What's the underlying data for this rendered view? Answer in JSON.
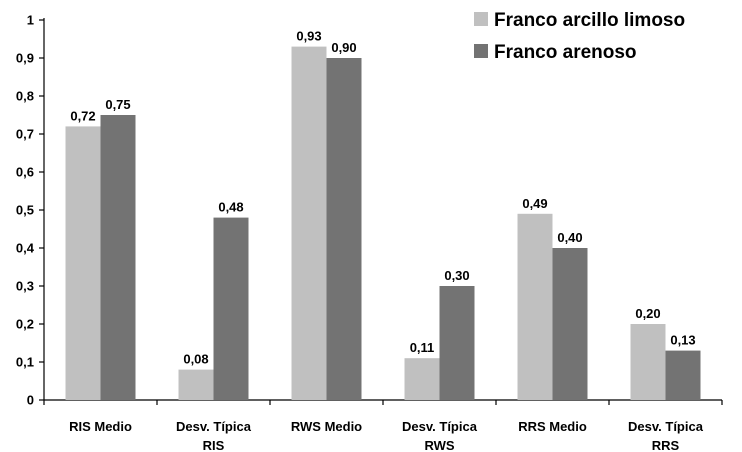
{
  "chart_data": {
    "type": "bar",
    "categories": [
      [
        "RIS Medio"
      ],
      [
        "Desv. Típica",
        "RIS"
      ],
      [
        "RWS Medio"
      ],
      [
        "Desv. Típica",
        "RWS"
      ],
      [
        "RRS Medio"
      ],
      [
        "Desv. Típica",
        "RRS"
      ]
    ],
    "series": [
      {
        "name": "Franco arcillo limoso",
        "color": "#c0c0c0",
        "values": [
          0.72,
          0.08,
          0.93,
          0.11,
          0.49,
          0.2
        ],
        "labels": [
          "0,72",
          "0,08",
          "0,93",
          "0,11",
          "0,49",
          "0,20"
        ]
      },
      {
        "name": "Franco arenoso",
        "color": "#737373",
        "values": [
          0.75,
          0.48,
          0.9,
          0.3,
          0.4,
          0.13
        ],
        "labels": [
          "0,75",
          "0,48",
          "0,90",
          "0,30",
          "0,40",
          "0,13"
        ]
      }
    ],
    "ylim": [
      0,
      1
    ],
    "yticks": [
      0,
      0.1,
      0.2,
      0.3,
      0.4,
      0.5,
      0.6,
      0.7,
      0.8,
      0.9,
      1
    ],
    "ytick_labels": [
      "0",
      "0,1",
      "0,2",
      "0,3",
      "0,4",
      "0,5",
      "0,6",
      "0,7",
      "0,8",
      "0,9",
      "1"
    ],
    "grid": false,
    "legend": "top-right",
    "title": "",
    "xlabel": "",
    "ylabel": ""
  }
}
